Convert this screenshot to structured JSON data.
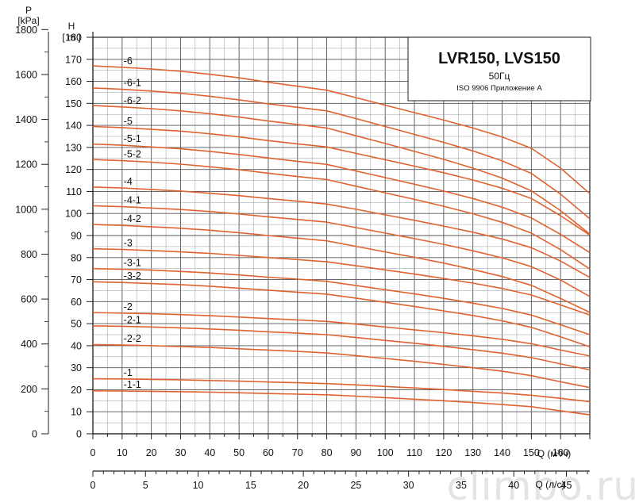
{
  "chart_data": {
    "type": "line",
    "title": "LVR150, LVS150",
    "subtitle": "50Гц",
    "standard": "ISO 9906 Приложение А",
    "xlabel": "Q (м³/ч)",
    "x2label": "Q (л/с)",
    "ylabel": "H",
    "ylabel_unit": "[ m ]",
    "y2label": "P",
    "y2label_unit": "[kPa]",
    "xlim": [
      0,
      170
    ],
    "ylim": [
      0,
      180
    ],
    "x_ticks": [
      0,
      10,
      20,
      30,
      40,
      50,
      60,
      70,
      80,
      90,
      100,
      110,
      120,
      130,
      140,
      150,
      160
    ],
    "x2_ticks": [
      0,
      5,
      10,
      15,
      20,
      25,
      30,
      35,
      40,
      45
    ],
    "y_ticks": [
      0,
      10,
      20,
      30,
      40,
      50,
      60,
      70,
      80,
      90,
      100,
      110,
      120,
      130,
      140,
      150,
      160,
      170,
      180
    ],
    "p_ticks": [
      0,
      200,
      400,
      600,
      800,
      1000,
      1200,
      1400,
      1600,
      1800
    ],
    "grid": true,
    "line_color": "#e0622e",
    "x": [
      0,
      10,
      20,
      30,
      40,
      50,
      60,
      70,
      80,
      90,
      100,
      110,
      120,
      130,
      140,
      150,
      160,
      170
    ],
    "series": [
      {
        "name": "-6",
        "values": [
          167,
          166.4,
          165.6,
          164.6,
          163.2,
          161.6,
          159.6,
          157.8,
          156,
          152.6,
          149.2,
          145.8,
          142.4,
          138.8,
          134.8,
          129.6,
          120.6,
          109
        ]
      },
      {
        "name": "-6-1",
        "values": [
          157,
          156.4,
          155.6,
          154.6,
          153.2,
          151.6,
          149.8,
          148.2,
          146.6,
          143.1,
          139.5,
          135.9,
          132.3,
          128.4,
          123.9,
          118.2,
          108.8,
          97.6
        ]
      },
      {
        "name": "-6-2",
        "values": [
          149,
          148.4,
          147.6,
          146.6,
          145.3,
          143.8,
          142,
          140.4,
          138.8,
          135.3,
          131.8,
          128.2,
          124.6,
          120.6,
          116.1,
          110.3,
          101.3,
          90.6
        ]
      },
      {
        "name": "-5",
        "values": [
          139.5,
          139,
          138.2,
          137.4,
          136.2,
          134.8,
          133.1,
          131.6,
          130.2,
          127.3,
          124.4,
          121.5,
          118.5,
          115.2,
          111.5,
          106.8,
          99,
          90.2
        ]
      },
      {
        "name": "-5-1",
        "values": [
          131.5,
          131,
          130.2,
          129.4,
          128.2,
          126.8,
          125.2,
          123.7,
          122.3,
          119.3,
          116.3,
          113.3,
          110.2,
          106.8,
          102.9,
          98,
          90.5,
          82.3
        ]
      },
      {
        "name": "-5-2",
        "values": [
          124.5,
          124,
          123.3,
          122.4,
          121.2,
          119.9,
          118.3,
          116.8,
          115.4,
          112.4,
          109.4,
          106.4,
          103.3,
          99.9,
          96,
          91.1,
          83.6,
          74.8
        ]
      },
      {
        "name": "-4",
        "values": [
          112,
          111.6,
          110.9,
          110.2,
          109.2,
          108.1,
          106.8,
          105.6,
          104.3,
          101.9,
          99.4,
          96.9,
          94.3,
          91.5,
          88.4,
          84.5,
          78.4,
          71
        ]
      },
      {
        "name": "-4-1",
        "values": [
          103.5,
          103.1,
          102.5,
          101.8,
          100.9,
          99.8,
          98.5,
          97.3,
          96.1,
          93.6,
          91.1,
          88.6,
          86,
          83.1,
          79.9,
          75.9,
          69.8,
          62.3
        ]
      },
      {
        "name": "-4-2",
        "values": [
          95,
          94.6,
          94,
          93.3,
          92.4,
          91.3,
          90,
          88.8,
          87.6,
          85.1,
          82.6,
          80.1,
          77.5,
          74.6,
          71.4,
          67.4,
          61.4,
          55.1
        ]
      },
      {
        "name": "-3",
        "values": [
          84,
          83.7,
          83.2,
          82.6,
          81.9,
          81,
          80,
          79.1,
          78.1,
          76.3,
          74.4,
          72.5,
          70.5,
          68.4,
          66,
          63,
          58.5,
          53.9
        ]
      },
      {
        "name": "-3-1",
        "values": [
          75,
          74.7,
          74.3,
          73.7,
          73,
          72.1,
          71.1,
          70.2,
          69.2,
          67.3,
          65.4,
          63.5,
          61.5,
          59.3,
          56.9,
          53.9,
          49.5,
          45
        ]
      },
      {
        "name": "-3-2",
        "values": [
          69,
          68.7,
          68.2,
          67.7,
          67,
          66.1,
          65.2,
          64.3,
          63.4,
          61.6,
          59.7,
          57.8,
          55.8,
          53.7,
          51.3,
          48.3,
          44,
          39.5
        ]
      },
      {
        "name": "-2",
        "values": [
          55,
          54.8,
          54.5,
          54.1,
          53.6,
          53,
          52.3,
          51.7,
          51,
          49.8,
          48.5,
          47.2,
          45.9,
          44.5,
          42.9,
          40.9,
          38,
          35.3
        ]
      },
      {
        "name": "-2-1",
        "values": [
          49,
          48.8,
          48.5,
          48.1,
          47.6,
          47,
          46.3,
          45.7,
          45,
          43.7,
          42.4,
          41.1,
          39.7,
          38.2,
          36.6,
          34.6,
          31.7,
          29
        ]
      },
      {
        "name": "-2-2",
        "values": [
          40.5,
          40.3,
          40,
          39.6,
          39.2,
          38.6,
          38,
          37.4,
          36.7,
          35.5,
          34.2,
          32.9,
          31.5,
          30,
          28.4,
          26.4,
          23.6,
          21
        ]
      },
      {
        "name": "-1",
        "values": [
          25,
          24.9,
          24.7,
          24.5,
          24.2,
          23.9,
          23.5,
          23.2,
          22.8,
          22.2,
          21.5,
          20.8,
          20.1,
          19.3,
          18.5,
          17.5,
          16.1,
          14.6
        ]
      },
      {
        "name": "-1-1",
        "values": [
          19.5,
          19.4,
          19.3,
          19.1,
          18.9,
          18.6,
          18.3,
          18,
          17.7,
          17.1,
          16.4,
          15.7,
          15,
          14.2,
          13.3,
          12.3,
          10.4,
          8.6
        ]
      }
    ],
    "watermark": "climbo.ru"
  }
}
